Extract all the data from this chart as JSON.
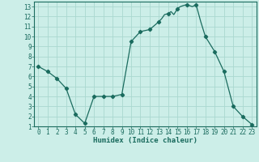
{
  "title": "",
  "xlabel": "Humidex (Indice chaleur)",
  "background_color": "#cceee8",
  "grid_color": "#aad8d0",
  "line_color": "#1a6b5e",
  "marker_color": "#1a6b5e",
  "x": [
    0,
    1,
    2,
    3,
    4,
    5,
    6,
    7,
    8,
    9,
    10,
    11,
    12,
    13,
    13.3,
    13.6,
    14,
    14.3,
    14.6,
    15,
    15.3,
    15.6,
    16,
    16.3,
    16.6,
    17,
    17.5,
    18,
    19,
    20,
    21,
    22,
    23
  ],
  "y": [
    7.0,
    6.5,
    5.8,
    4.8,
    2.2,
    1.3,
    4.0,
    4.0,
    4.0,
    4.2,
    9.5,
    10.5,
    10.7,
    11.5,
    11.8,
    12.2,
    12.3,
    12.5,
    12.2,
    12.8,
    13.0,
    13.1,
    13.2,
    13.1,
    13.0,
    13.2,
    11.5,
    10.0,
    8.5,
    6.5,
    3.0,
    2.0,
    1.2
  ],
  "marker_x": [
    0,
    1,
    2,
    3,
    4,
    5,
    6,
    7,
    8,
    9,
    10,
    11,
    12,
    13,
    14,
    15,
    16,
    17,
    18,
    19,
    20,
    21,
    22,
    23
  ],
  "marker_y": [
    7.0,
    6.5,
    5.8,
    4.8,
    2.2,
    1.3,
    4.0,
    4.0,
    4.0,
    4.2,
    9.5,
    10.5,
    10.7,
    11.5,
    12.3,
    12.8,
    13.2,
    13.2,
    10.0,
    8.5,
    6.5,
    3.0,
    2.0,
    1.2
  ],
  "xlim": [
    -0.5,
    23.5
  ],
  "ylim": [
    1,
    13.5
  ],
  "yticks": [
    1,
    2,
    3,
    4,
    5,
    6,
    7,
    8,
    9,
    10,
    11,
    12,
    13
  ],
  "xticks": [
    0,
    1,
    2,
    3,
    4,
    5,
    6,
    7,
    8,
    9,
    10,
    11,
    12,
    13,
    14,
    15,
    16,
    17,
    18,
    19,
    20,
    21,
    22,
    23
  ],
  "tick_fontsize": 5.5,
  "xlabel_fontsize": 6.5
}
